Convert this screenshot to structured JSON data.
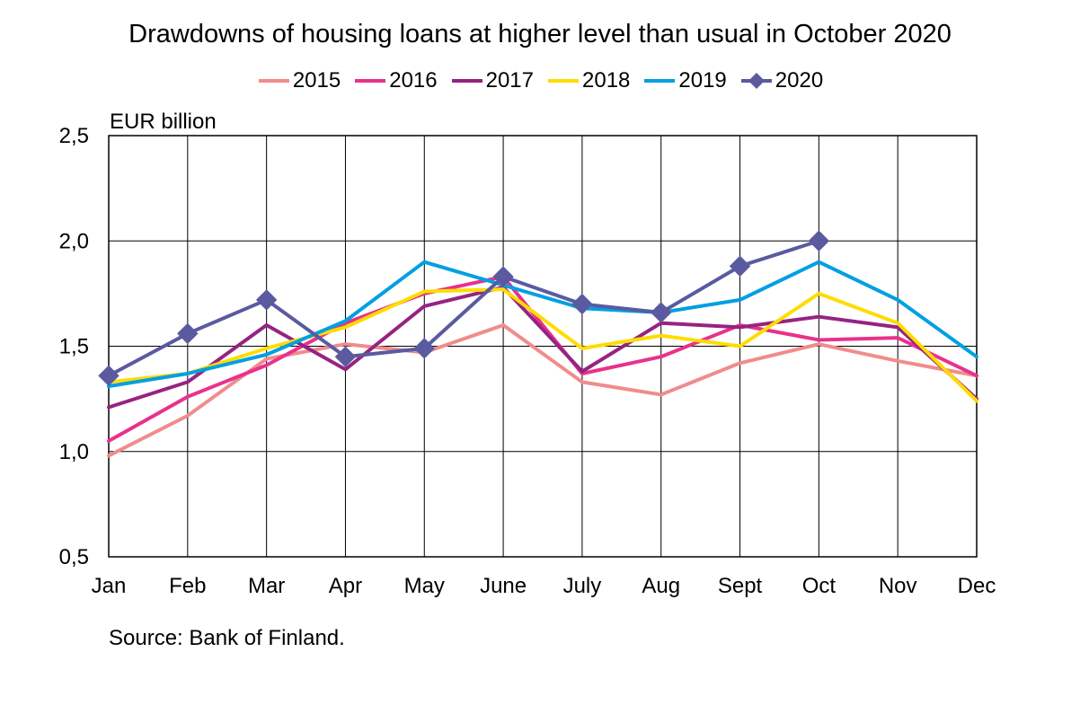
{
  "chart_data": {
    "type": "line",
    "title": "Drawdowns of housing loans at higher level than usual in October 2020",
    "ylabel": "EUR billion",
    "xlabel": "",
    "source": "Source: Bank of Finland.",
    "categories": [
      "Jan",
      "Feb",
      "Mar",
      "Apr",
      "May",
      "June",
      "July",
      "Aug",
      "Sept",
      "Oct",
      "Nov",
      "Dec"
    ],
    "ylim": [
      0.5,
      2.5
    ],
    "y_ticks": [
      "0,5",
      "1,0",
      "1,5",
      "2,0",
      "2,5"
    ],
    "y_tick_values": [
      0.5,
      1.0,
      1.5,
      2.0,
      2.5
    ],
    "grid": true,
    "legend_position": "top",
    "series": [
      {
        "name": "2015",
        "color": "#f08c8c",
        "marker": "none",
        "values": [
          0.98,
          1.17,
          1.44,
          1.51,
          1.47,
          1.6,
          1.33,
          1.27,
          1.42,
          1.51,
          1.43,
          1.36
        ]
      },
      {
        "name": "2016",
        "color": "#e8328c",
        "marker": "none",
        "values": [
          1.05,
          1.26,
          1.41,
          1.61,
          1.75,
          1.83,
          1.37,
          1.45,
          1.6,
          1.53,
          1.54,
          1.36
        ]
      },
      {
        "name": "2017",
        "color": "#962382",
        "marker": "none",
        "values": [
          1.21,
          1.33,
          1.6,
          1.39,
          1.69,
          1.78,
          1.38,
          1.61,
          1.59,
          1.64,
          1.59,
          1.25
        ]
      },
      {
        "name": "2018",
        "color": "#ffdc00",
        "marker": "none",
        "values": [
          1.33,
          1.37,
          1.49,
          1.59,
          1.76,
          1.77,
          1.49,
          1.55,
          1.5,
          1.75,
          1.61,
          1.24
        ]
      },
      {
        "name": "2019",
        "color": "#00a0e1",
        "marker": "none",
        "values": [
          1.31,
          1.37,
          1.46,
          1.62,
          1.9,
          1.79,
          1.68,
          1.66,
          1.72,
          1.9,
          1.72,
          1.45
        ]
      },
      {
        "name": "2020",
        "color": "#5a5aa0",
        "marker": "diamond",
        "values": [
          1.36,
          1.56,
          1.72,
          1.45,
          1.49,
          1.83,
          1.7,
          1.66,
          1.88,
          2.0,
          null,
          null
        ]
      }
    ]
  }
}
